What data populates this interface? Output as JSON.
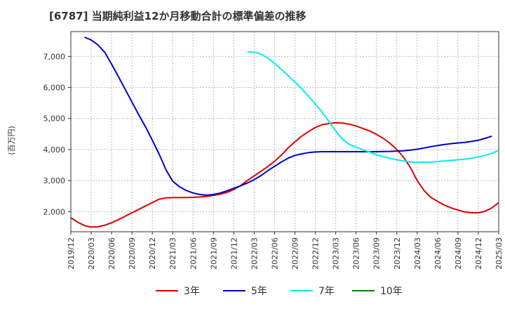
{
  "chart_data": {
    "type": "line",
    "title": "[6787]  当期純利益12か月移動合計の標準偏差の推移",
    "ylabel": "(百万円)",
    "xlabel": "",
    "ylim": [
      1350,
      7800
    ],
    "yticks": [
      2000,
      3000,
      4000,
      5000,
      6000,
      7000
    ],
    "ytick_labels": [
      "2,000",
      "3,000",
      "4,000",
      "5,000",
      "6,000",
      "7,000"
    ],
    "xlim": [
      "2019-12",
      "2025-03"
    ],
    "xtick_labels": [
      "2019/12",
      "2020/03",
      "2020/06",
      "2020/09",
      "2020/12",
      "2021/03",
      "2021/06",
      "2021/09",
      "2021/12",
      "2022/03",
      "2022/06",
      "2022/09",
      "2022/12",
      "2023/03",
      "2023/06",
      "2023/09",
      "2023/12",
      "2024/03",
      "2024/06",
      "2024/09",
      "2024/12",
      "2025/03"
    ],
    "grid": true,
    "legend_position": "bottom-center",
    "series": [
      {
        "name": "3年",
        "color": "#dd0000",
        "start": "2019-12",
        "values": [
          1800,
          1660,
          1550,
          1500,
          1510,
          1560,
          1640,
          1740,
          1850,
          1960,
          2070,
          2180,
          2290,
          2400,
          2440,
          2450,
          2450,
          2455,
          2460,
          2470,
          2490,
          2520,
          2560,
          2620,
          2710,
          2840,
          3000,
          3150,
          3300,
          3450,
          3620,
          3820,
          4050,
          4250,
          4430,
          4580,
          4710,
          4800,
          4840,
          4860,
          4850,
          4820,
          4760,
          4680,
          4600,
          4490,
          4360,
          4200,
          4000,
          3750,
          3420,
          3000,
          2680,
          2460,
          2330,
          2210,
          2120,
          2050,
          1990,
          1960,
          1960,
          2010,
          2120,
          2290
        ]
      },
      {
        "name": "5年",
        "color": "#0000cc",
        "start": "2020-02",
        "values": [
          7620,
          7530,
          7370,
          7130,
          6750,
          6350,
          5940,
          5530,
          5120,
          4730,
          4300,
          3850,
          3350,
          2980,
          2800,
          2680,
          2600,
          2550,
          2530,
          2550,
          2600,
          2670,
          2750,
          2830,
          2920,
          3030,
          3160,
          3320,
          3460,
          3600,
          3720,
          3810,
          3860,
          3900,
          3920,
          3930,
          3930,
          3930,
          3930,
          3930,
          3930,
          3930,
          3930,
          3930,
          3935,
          3940,
          3950,
          3960,
          3980,
          4010,
          4050,
          4090,
          4130,
          4160,
          4190,
          4210,
          4230,
          4260,
          4300,
          4360,
          4430
        ]
      },
      {
        "name": "7年",
        "color": "#00eeee",
        "start": "2022-02",
        "values": [
          7150,
          7140,
          7080,
          6950,
          6780,
          6580,
          6380,
          6170,
          5960,
          5720,
          5470,
          5200,
          4910,
          4600,
          4330,
          4170,
          4080,
          3990,
          3920,
          3830,
          3770,
          3720,
          3670,
          3630,
          3600,
          3590,
          3590,
          3600,
          3610,
          3630,
          3650,
          3670,
          3690,
          3720,
          3760,
          3810,
          3880,
          3970
        ]
      },
      {
        "name": "10年",
        "color": "#008800",
        "start": "2019-12",
        "values": []
      }
    ]
  }
}
